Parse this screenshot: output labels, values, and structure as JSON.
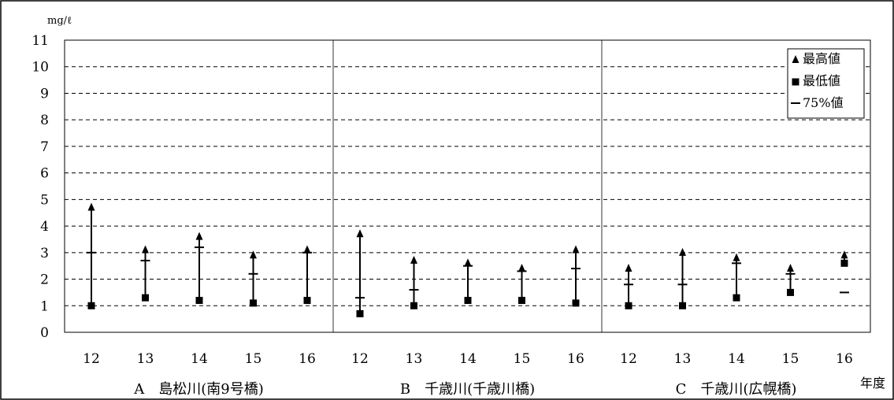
{
  "chart_data": {
    "type": "range",
    "y_unit": "mg/ℓ",
    "x_unit": "年度",
    "ylim": [
      0,
      11
    ],
    "yticks": [
      "0",
      "1",
      "2",
      "3",
      "4",
      "5",
      "6",
      "7",
      "8",
      "9",
      "10",
      "11"
    ],
    "grid": "dashed horizontal",
    "legend_position": "top-right",
    "legend": [
      {
        "label": "最高値",
        "marker": "triangle"
      },
      {
        "label": "最低値",
        "marker": "square"
      },
      {
        "label": "75%値",
        "marker": "dash"
      }
    ],
    "groups": [
      {
        "label": "A　島松川(南9号橋)",
        "years": [
          "12",
          "13",
          "14",
          "15",
          "16"
        ],
        "max": [
          4.7,
          3.1,
          3.6,
          2.9,
          3.1
        ],
        "min": [
          1.0,
          1.3,
          1.2,
          1.1,
          1.2
        ],
        "p75": [
          3.0,
          2.7,
          3.2,
          2.2,
          3.0
        ]
      },
      {
        "label": "B　千歳川(千歳川橋)",
        "years": [
          "12",
          "13",
          "14",
          "15",
          "16"
        ],
        "max": [
          3.7,
          2.7,
          2.6,
          2.4,
          3.1
        ],
        "min": [
          0.7,
          1.0,
          1.2,
          1.2,
          1.1
        ],
        "p75": [
          1.3,
          1.6,
          2.5,
          2.3,
          2.4
        ]
      },
      {
        "label": "C　千歳川(広幌橋)",
        "years": [
          "12",
          "13",
          "14",
          "15",
          "16"
        ],
        "max": [
          2.4,
          3.0,
          2.8,
          2.4,
          2.9
        ],
        "min": [
          1.0,
          1.0,
          1.3,
          1.5,
          2.6
        ],
        "p75": [
          1.8,
          1.8,
          2.6,
          2.2,
          1.5
        ]
      }
    ]
  }
}
